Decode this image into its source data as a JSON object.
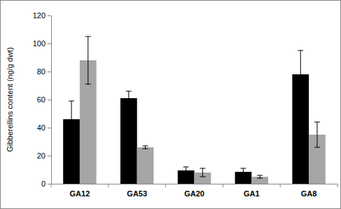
{
  "chart_data": {
    "type": "bar",
    "y_label": "Gibberellins content (ng/g dwt)",
    "categories": [
      "GA12",
      "GA53",
      "GA20",
      "GA1",
      "GA8"
    ],
    "series": [
      {
        "color": "#000000",
        "values": [
          46,
          61,
          9.5,
          8.5,
          78
        ],
        "errors": [
          13,
          5,
          2.5,
          2.5,
          17
        ]
      },
      {
        "color": "#a6a6a6",
        "values": [
          88,
          26,
          8,
          5,
          35
        ],
        "errors": [
          17,
          1,
          3,
          1,
          9
        ]
      }
    ],
    "ylim": [
      0,
      120
    ],
    "yticks": [
      0,
      20,
      40,
      60,
      80,
      100,
      120
    ],
    "grid": false
  }
}
